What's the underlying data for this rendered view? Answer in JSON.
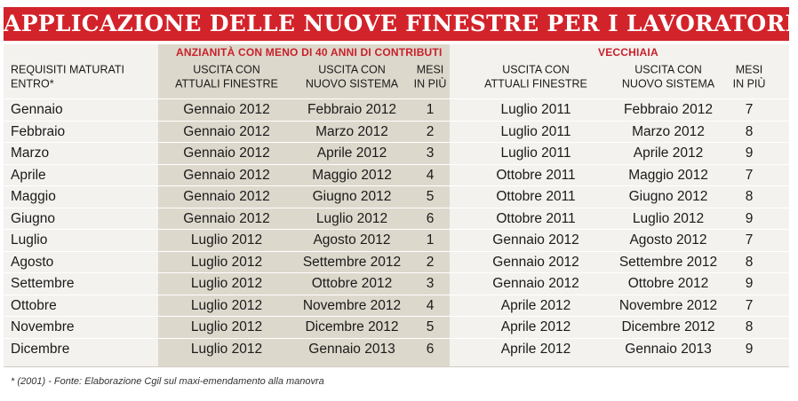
{
  "title": "APPLICAZIONE DELLE NUOVE FINESTRE PER I LAVORATORI DIPENDENTI",
  "sections": {
    "anzianita": "ANZIANITÀ CON MENO DI 40 ANNI DI CONTRIBUTI",
    "vecchiaia": "VECCHIAIA"
  },
  "headers": {
    "requisiti_line1": "REQUISITI MATURATI",
    "requisiti_line2": "ENTRO*",
    "uscita_attuali_line1": "USCITA CON",
    "uscita_attuali_line2": "ATTUALI FINESTRE",
    "uscita_nuovo_line1": "USCITA CON",
    "uscita_nuovo_line2": "NUOVO SISTEMA",
    "mesi_line1": "MESI",
    "mesi_line2": "IN PIÙ"
  },
  "rows": [
    [
      "Gennaio",
      "Gennaio 2012",
      "Febbraio 2012",
      "1",
      "Luglio 2011",
      "Febbraio 2012",
      "7"
    ],
    [
      "Febbraio",
      "Gennaio 2012",
      "Marzo 2012",
      "2",
      "Luglio 2011",
      "Marzo 2012",
      "8"
    ],
    [
      "Marzo",
      "Gennaio 2012",
      "Aprile 2012",
      "3",
      "Luglio 2011",
      "Aprile 2012",
      "9"
    ],
    [
      "Aprile",
      "Gennaio 2012",
      "Maggio 2012",
      "4",
      "Ottobre 2011",
      "Maggio 2012",
      "7"
    ],
    [
      "Maggio",
      "Gennaio 2012",
      "Giugno 2012",
      "5",
      "Ottobre 2011",
      "Giugno 2012",
      "8"
    ],
    [
      "Giugno",
      "Gennaio 2012",
      "Luglio 2012",
      "6",
      "Ottobre 2011",
      "Luglio 2012",
      "9"
    ],
    [
      "Luglio",
      "Luglio 2012",
      "Agosto 2012",
      "1",
      "Gennaio 2012",
      "Agosto 2012",
      "7"
    ],
    [
      "Agosto",
      "Luglio 2012",
      "Settembre 2012",
      "2",
      "Gennaio 2012",
      "Settembre 2012",
      "8"
    ],
    [
      "Settembre",
      "Luglio 2012",
      "Ottobre 2012",
      "3",
      "Gennaio 2012",
      "Ottobre 2012",
      "9"
    ],
    [
      "Ottobre",
      "Luglio 2012",
      "Novembre 2012",
      "4",
      "Aprile 2012",
      "Novembre 2012",
      "7"
    ],
    [
      "Novembre",
      "Luglio 2012",
      "Dicembre 2012",
      "5",
      "Aprile 2012",
      "Dicembre 2012",
      "8"
    ],
    [
      "Dicembre",
      "Luglio 2012",
      "Gennaio 2013",
      "6",
      "Aprile 2012",
      "Gennaio 2013",
      "9"
    ]
  ],
  "footnote": "* (2001) - Fonte: Elaborazione Cgil sul maxi-emendamento alla manovra",
  "colors": {
    "banner": "#d2232a",
    "section_text": "#c8202a",
    "shaded_column": "#ddd8cc",
    "panel": "#f3f2ee"
  }
}
